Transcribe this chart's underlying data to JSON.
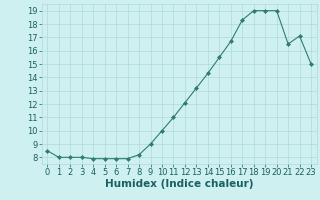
{
  "x": [
    0,
    1,
    2,
    3,
    4,
    5,
    6,
    7,
    8,
    9,
    10,
    11,
    12,
    13,
    14,
    15,
    16,
    17,
    18,
    19,
    20,
    21,
    22,
    23
  ],
  "y": [
    8.5,
    8.0,
    8.0,
    8.0,
    7.9,
    7.9,
    7.9,
    7.9,
    8.2,
    9.0,
    10.0,
    11.0,
    12.1,
    13.2,
    14.3,
    15.5,
    16.7,
    18.3,
    19.0,
    19.0,
    19.0,
    16.5,
    17.1,
    15.0
  ],
  "line_color": "#2e7d6e",
  "marker": "D",
  "marker_size": 2.0,
  "xlabel": "Humidex (Indice chaleur)",
  "xlim": [
    -0.5,
    23.5
  ],
  "ylim": [
    7.5,
    19.5
  ],
  "yticks": [
    8,
    9,
    10,
    11,
    12,
    13,
    14,
    15,
    16,
    17,
    18,
    19
  ],
  "xticks": [
    0,
    1,
    2,
    3,
    4,
    5,
    6,
    7,
    8,
    9,
    10,
    11,
    12,
    13,
    14,
    15,
    16,
    17,
    18,
    19,
    20,
    21,
    22,
    23
  ],
  "bg_color": "#cff0f0",
  "grid_major_color": "#b0d8d8",
  "grid_minor_color": "#c5e8e8",
  "tick_label_color": "#1a6060",
  "xlabel_color": "#1a6060",
  "xlabel_fontsize": 7.5,
  "tick_fontsize": 6.0,
  "linewidth": 0.8
}
